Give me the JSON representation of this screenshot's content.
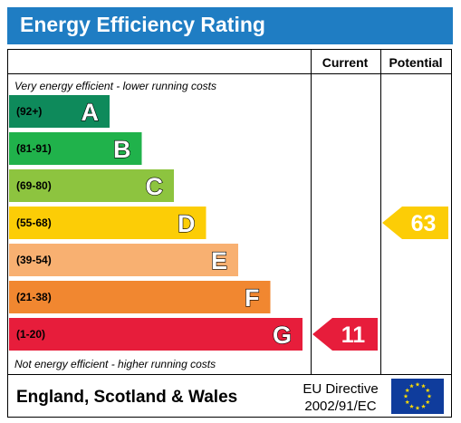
{
  "title": "Energy Efficiency Rating",
  "columns": {
    "current": "Current",
    "potential": "Potential"
  },
  "top_note": "Very energy efficient - lower running costs",
  "bottom_note": "Not energy efficient - higher running costs",
  "footer": {
    "region": "England, Scotland & Wales",
    "directive_line1": "EU Directive",
    "directive_line2": "2002/91/EC"
  },
  "colors": {
    "header": "#1f7dc3",
    "eu_flag": "#0f3c9c",
    "eu_stars": "#ffdd00"
  },
  "chart_data": {
    "type": "bar",
    "bands": [
      {
        "range": "(92+)",
        "letter": "A",
        "color": "#0e8a5b"
      },
      {
        "range": "(81-91)",
        "letter": "B",
        "color": "#20b24b"
      },
      {
        "range": "(69-80)",
        "letter": "C",
        "color": "#8dc43f"
      },
      {
        "range": "(55-68)",
        "letter": "D",
        "color": "#fccd06"
      },
      {
        "range": "(39-54)",
        "letter": "E",
        "color": "#f8b071"
      },
      {
        "range": "(21-38)",
        "letter": "F",
        "color": "#f18730"
      },
      {
        "range": "(1-20)",
        "letter": "G",
        "color": "#e71d3b"
      }
    ],
    "current": {
      "value": 11,
      "band": "G",
      "color": "#e71d3b"
    },
    "potential": {
      "value": 63,
      "band": "D",
      "color": "#fccd06"
    }
  }
}
